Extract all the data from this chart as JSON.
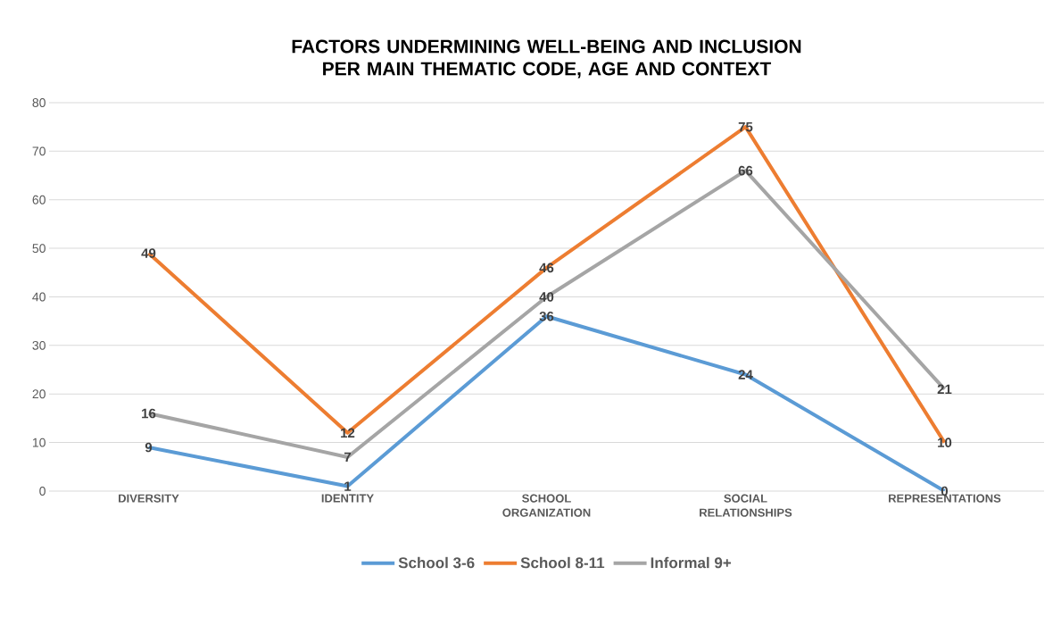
{
  "chart_data": {
    "type": "line",
    "title": "FACTORS UNDERMINING WELL-BEING AND INCLUSION PER MAIN THEMATIC CODE, AGE AND CONTEXT",
    "categories": [
      "DIVERSITY",
      "IDENTITY",
      "SCHOOL ORGANIZATION",
      "SOCIAL RELATIONSHIPS",
      "REPRESENTATIONS"
    ],
    "series": [
      {
        "name": "School 3-6",
        "color": "#5b9bd5",
        "values": [
          9,
          1,
          36,
          24,
          0
        ]
      },
      {
        "name": "School 8-11",
        "color": "#ed7d31",
        "values": [
          49,
          12,
          46,
          75,
          10
        ]
      },
      {
        "name": "Informal 9+",
        "color": "#a5a5a5",
        "values": [
          16,
          7,
          40,
          66,
          21
        ]
      }
    ],
    "ylim": [
      0,
      80
    ],
    "yticks": [
      0,
      10,
      20,
      30,
      40,
      50,
      60,
      70,
      80
    ],
    "grid": "y",
    "legend": "bottom",
    "data_labels": true,
    "marker": "none"
  }
}
